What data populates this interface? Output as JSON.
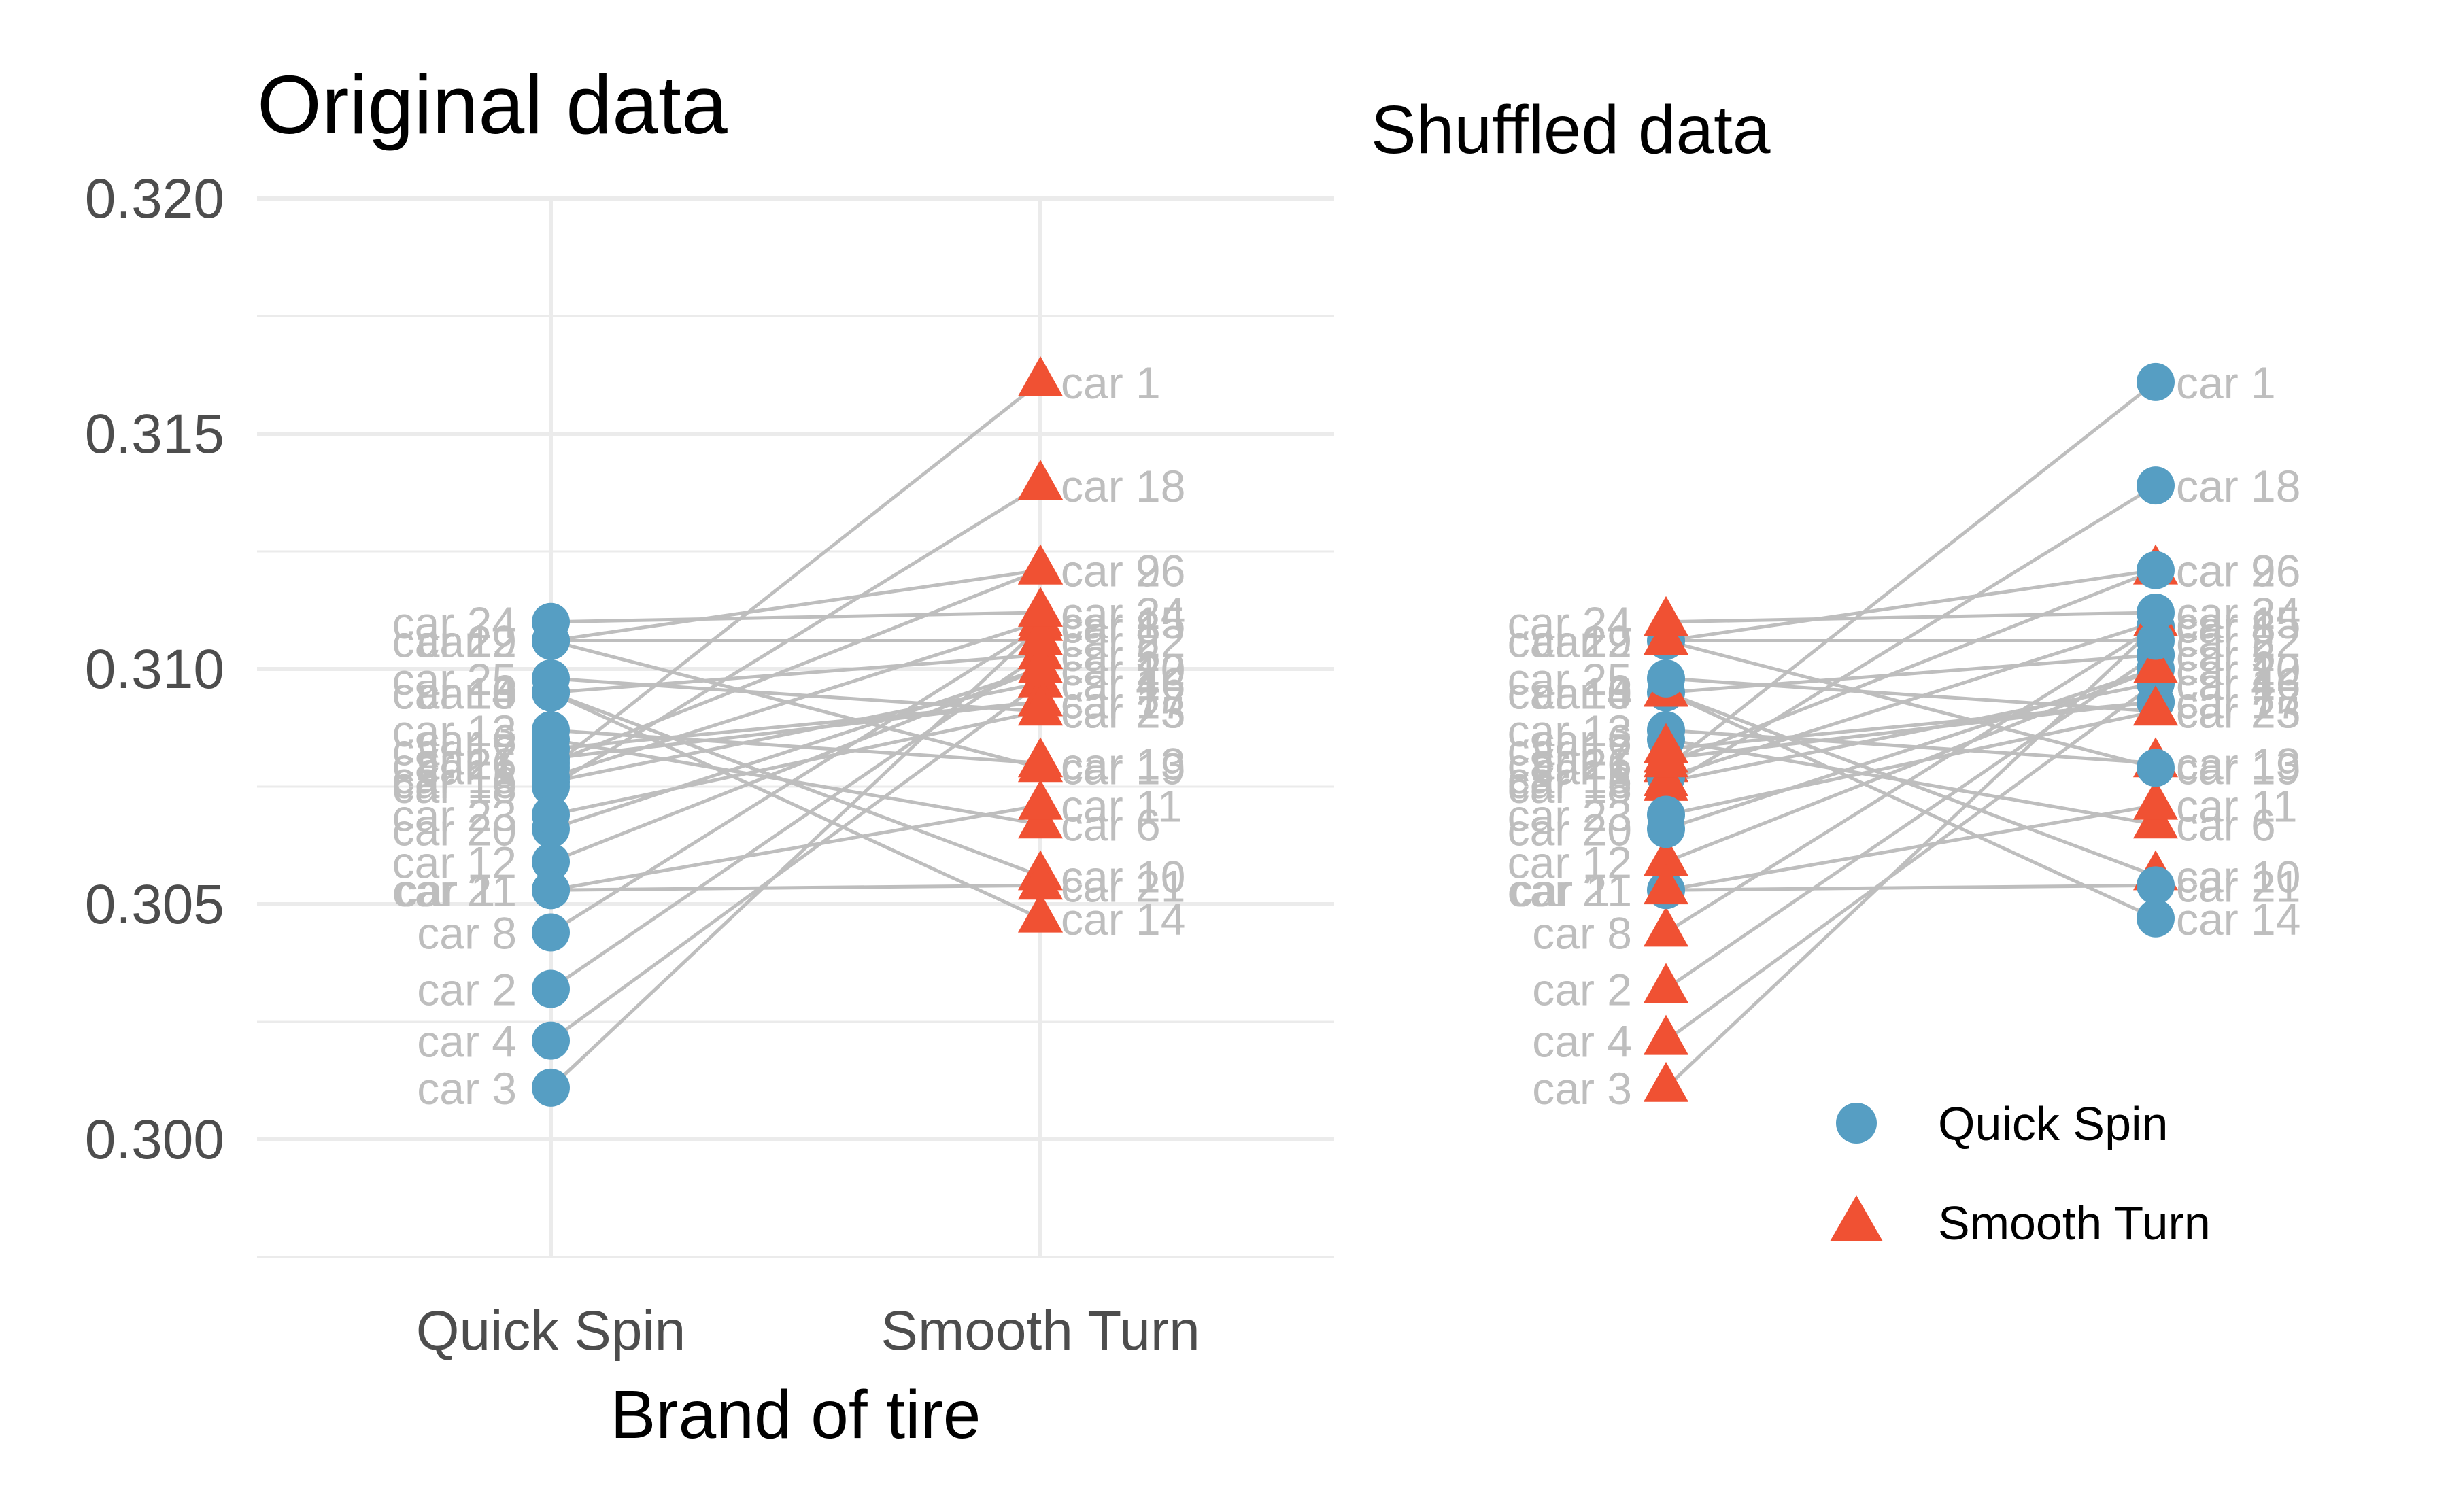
{
  "chart_data": [
    {
      "type": "scatter",
      "title": "Original data",
      "xlabel": "Brand of tire",
      "ylabel": "",
      "categories": [
        "Quick Spin",
        "Smooth Turn"
      ],
      "ylim": [
        0.2975,
        0.32
      ],
      "yticks": [
        0.3,
        0.305,
        0.31,
        0.315,
        0.32
      ],
      "ytick_labels": [
        "0.300",
        "0.305",
        "0.310",
        "0.315",
        "0.320"
      ],
      "grid": true,
      "connecting_lines": true,
      "pairs": [
        {
          "label": "car 1",
          "quick_spin": 0.3079,
          "smooth_turn": 0.3161
        },
        {
          "label": "car 2",
          "quick_spin": 0.3032,
          "smooth_turn": 0.3103
        },
        {
          "label": "car 3",
          "quick_spin": 0.3011,
          "smooth_turn": 0.3109
        },
        {
          "label": "car 4",
          "quick_spin": 0.3021,
          "smooth_turn": 0.3097
        },
        {
          "label": "car 5",
          "quick_spin": 0.3095,
          "smooth_turn": 0.3103
        },
        {
          "label": "car 6",
          "quick_spin": 0.3085,
          "smooth_turn": 0.3067
        },
        {
          "label": "car 7",
          "quick_spin": 0.3081,
          "smooth_turn": 0.3093
        },
        {
          "label": "car 8",
          "quick_spin": 0.3044,
          "smooth_turn": 0.3109
        },
        {
          "label": "car 9",
          "quick_spin": 0.3106,
          "smooth_turn": 0.3121
        },
        {
          "label": "car 10",
          "quick_spin": 0.3095,
          "smooth_turn": 0.3056
        },
        {
          "label": "car 11",
          "quick_spin": 0.3053,
          "smooth_turn": 0.3071
        },
        {
          "label": "car 12",
          "quick_spin": 0.3059,
          "smooth_turn": 0.31
        },
        {
          "label": "car 13",
          "quick_spin": 0.3087,
          "smooth_turn": 0.308
        },
        {
          "label": "car 14",
          "quick_spin": 0.3095,
          "smooth_turn": 0.3047
        },
        {
          "label": "car 15",
          "quick_spin": 0.3077,
          "smooth_turn": 0.311
        },
        {
          "label": "car 16",
          "quick_spin": 0.3076,
          "smooth_turn": 0.3097
        },
        {
          "label": "car 17",
          "quick_spin": 0.3083,
          "smooth_turn": 0.3093
        },
        {
          "label": "car 18",
          "quick_spin": 0.3075,
          "smooth_turn": 0.3139
        },
        {
          "label": "car 19",
          "quick_spin": 0.3106,
          "smooth_turn": 0.3079
        },
        {
          "label": "car 20",
          "quick_spin": 0.3066,
          "smooth_turn": 0.31
        },
        {
          "label": "car 21",
          "quick_spin": 0.3053,
          "smooth_turn": 0.3054
        },
        {
          "label": "car 22",
          "quick_spin": 0.3106,
          "smooth_turn": 0.3106
        },
        {
          "label": "car 23",
          "quick_spin": 0.3069,
          "smooth_turn": 0.3091
        },
        {
          "label": "car 24",
          "quick_spin": 0.311,
          "smooth_turn": 0.3112
        },
        {
          "label": "car 25",
          "quick_spin": 0.3098,
          "smooth_turn": 0.3091
        },
        {
          "label": "car 26",
          "quick_spin": 0.308,
          "smooth_turn": 0.3121
        }
      ],
      "colors": {
        "Quick Spin": "#569EC3",
        "Smooth Turn": "#F05133",
        "lines": "#BEBEBE",
        "labels": "#BEBEBE"
      }
    },
    {
      "type": "scatter",
      "title": "Shuffled data",
      "xlabel": "",
      "ylabel": "",
      "categories": [
        "Quick Spin",
        "Smooth Turn"
      ],
      "ylim": [
        0.2975,
        0.32
      ],
      "connecting_lines": true,
      "legend": {
        "position": "bottom-right",
        "entries": [
          "Quick Spin",
          "Smooth Turn"
        ]
      },
      "swapped_pairs": [
        "car 1",
        "car 2",
        "car 3",
        "car 4",
        "car 5",
        "car 7",
        "car 8",
        "car 12",
        "car 14",
        "car 16",
        "car 17",
        "car 18",
        "car 19",
        "car 21",
        "car 22",
        "car 24",
        "car 26"
      ],
      "colors": {
        "Quick Spin": "#569EC3",
        "Smooth Turn": "#F05133",
        "lines": "#BEBEBE",
        "labels": "#BEBEBE"
      }
    }
  ]
}
